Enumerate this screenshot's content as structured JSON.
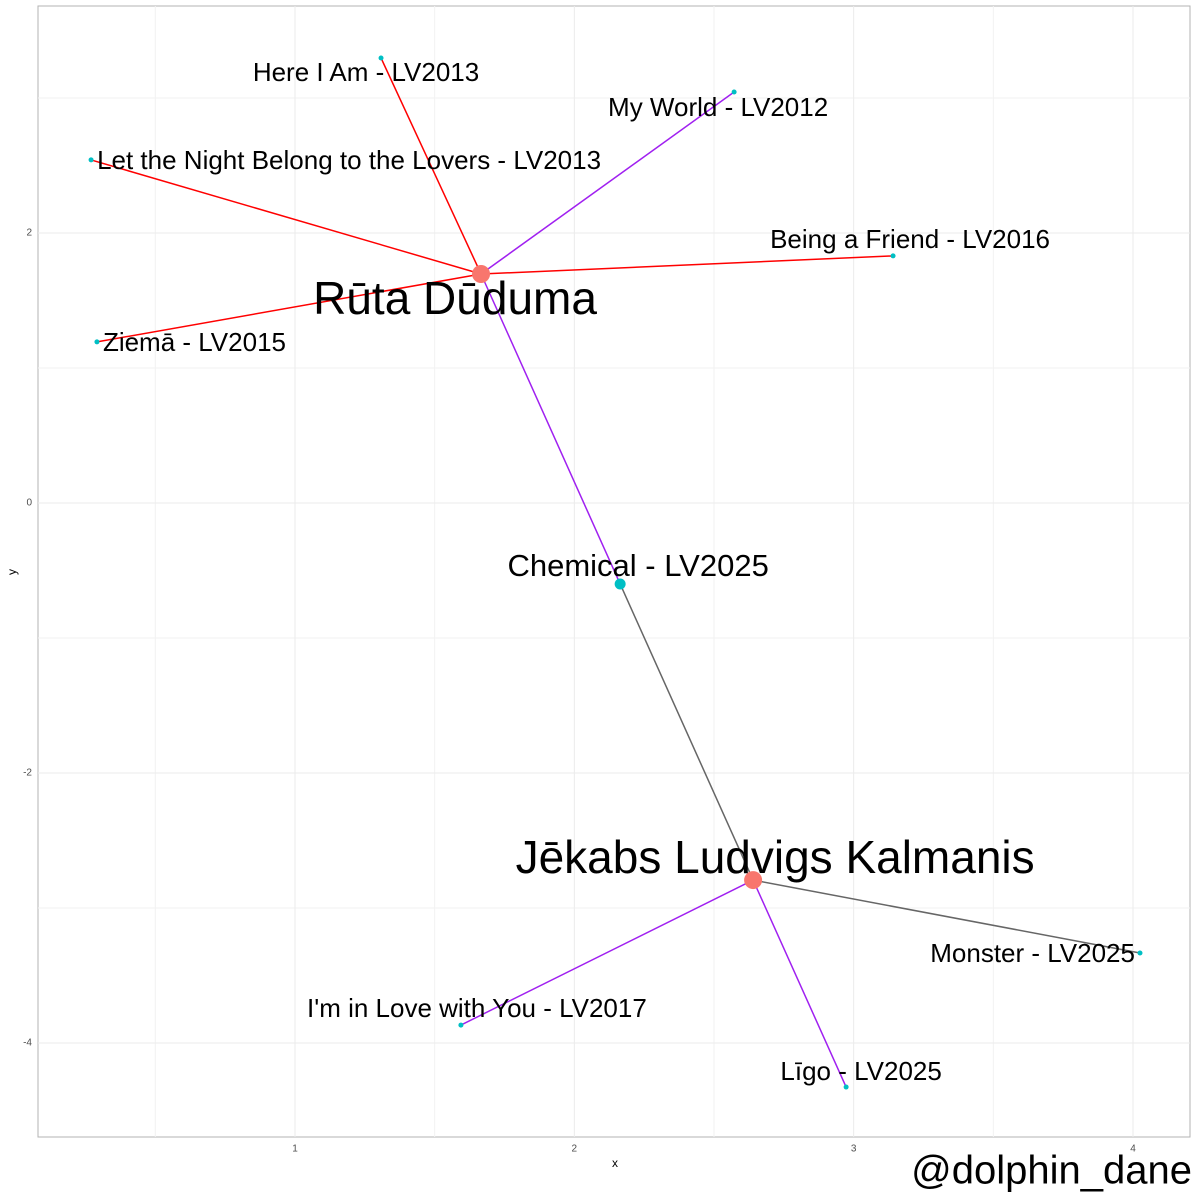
{
  "chart_data": {
    "type": "network",
    "x_label": "x",
    "y_label": "y",
    "caption": "@dolphin_dane",
    "xlim": [
      0.08,
      4.204
    ],
    "ylim": [
      -4.696,
      3.681
    ],
    "xticks": [
      1,
      2,
      3,
      4
    ],
    "yticks": [
      -4,
      -2,
      0,
      2
    ],
    "grid": true,
    "nodes": [
      {
        "label": "Rūta Dūduma",
        "x": 1.666,
        "y": 1.696,
        "color": "#f8766d"
      },
      {
        "label": "Jēkabs Ludvigs Kalmanis",
        "x": 2.64,
        "y": -2.793,
        "color": "#f8766d"
      },
      {
        "label": "Chemical - LV2025",
        "x": 2.164,
        "y": -0.6,
        "color": "#00bfc4"
      },
      {
        "label": "Here I Am - LV2013",
        "x": 1.308,
        "y": 3.296,
        "color": "#00bfc4"
      },
      {
        "label": "My World - LV2012",
        "x": 2.572,
        "y": 3.044,
        "color": "#00bfc4"
      },
      {
        "label": "Let the Night Belong to the Lovers - LV2013",
        "x": 0.27,
        "y": 2.541,
        "color": "#00bfc4"
      },
      {
        "label": "Being a Friend - LV2016",
        "x": 3.141,
        "y": 1.83,
        "color": "#00bfc4"
      },
      {
        "label": "Ziemā - LV2015",
        "x": 0.291,
        "y": 1.193,
        "color": "#00bfc4"
      },
      {
        "label": "Monster - LV2025",
        "x": 4.025,
        "y": -3.333,
        "color": "#00bfc4"
      },
      {
        "label": "I'm in Love with You - LV2017",
        "x": 1.594,
        "y": -3.867,
        "color": "#00bfc4"
      },
      {
        "label": "Līgo - LV2025",
        "x": 2.973,
        "y": -4.326,
        "color": "#00bfc4"
      }
    ],
    "edges": [
      {
        "from": 0,
        "to": 3,
        "color": "#ff0000"
      },
      {
        "from": 0,
        "to": 4,
        "color": "#a020f0"
      },
      {
        "from": 0,
        "to": 5,
        "color": "#ff0000"
      },
      {
        "from": 0,
        "to": 6,
        "color": "#ff0000"
      },
      {
        "from": 0,
        "to": 7,
        "color": "#ff0000"
      },
      {
        "from": 0,
        "to": 2,
        "color": "#a020f0"
      },
      {
        "from": 2,
        "to": 1,
        "color": "#666666"
      },
      {
        "from": 1,
        "to": 8,
        "color": "#666666"
      },
      {
        "from": 1,
        "to": 9,
        "color": "#a020f0"
      },
      {
        "from": 1,
        "to": 10,
        "color": "#a020f0"
      }
    ]
  }
}
